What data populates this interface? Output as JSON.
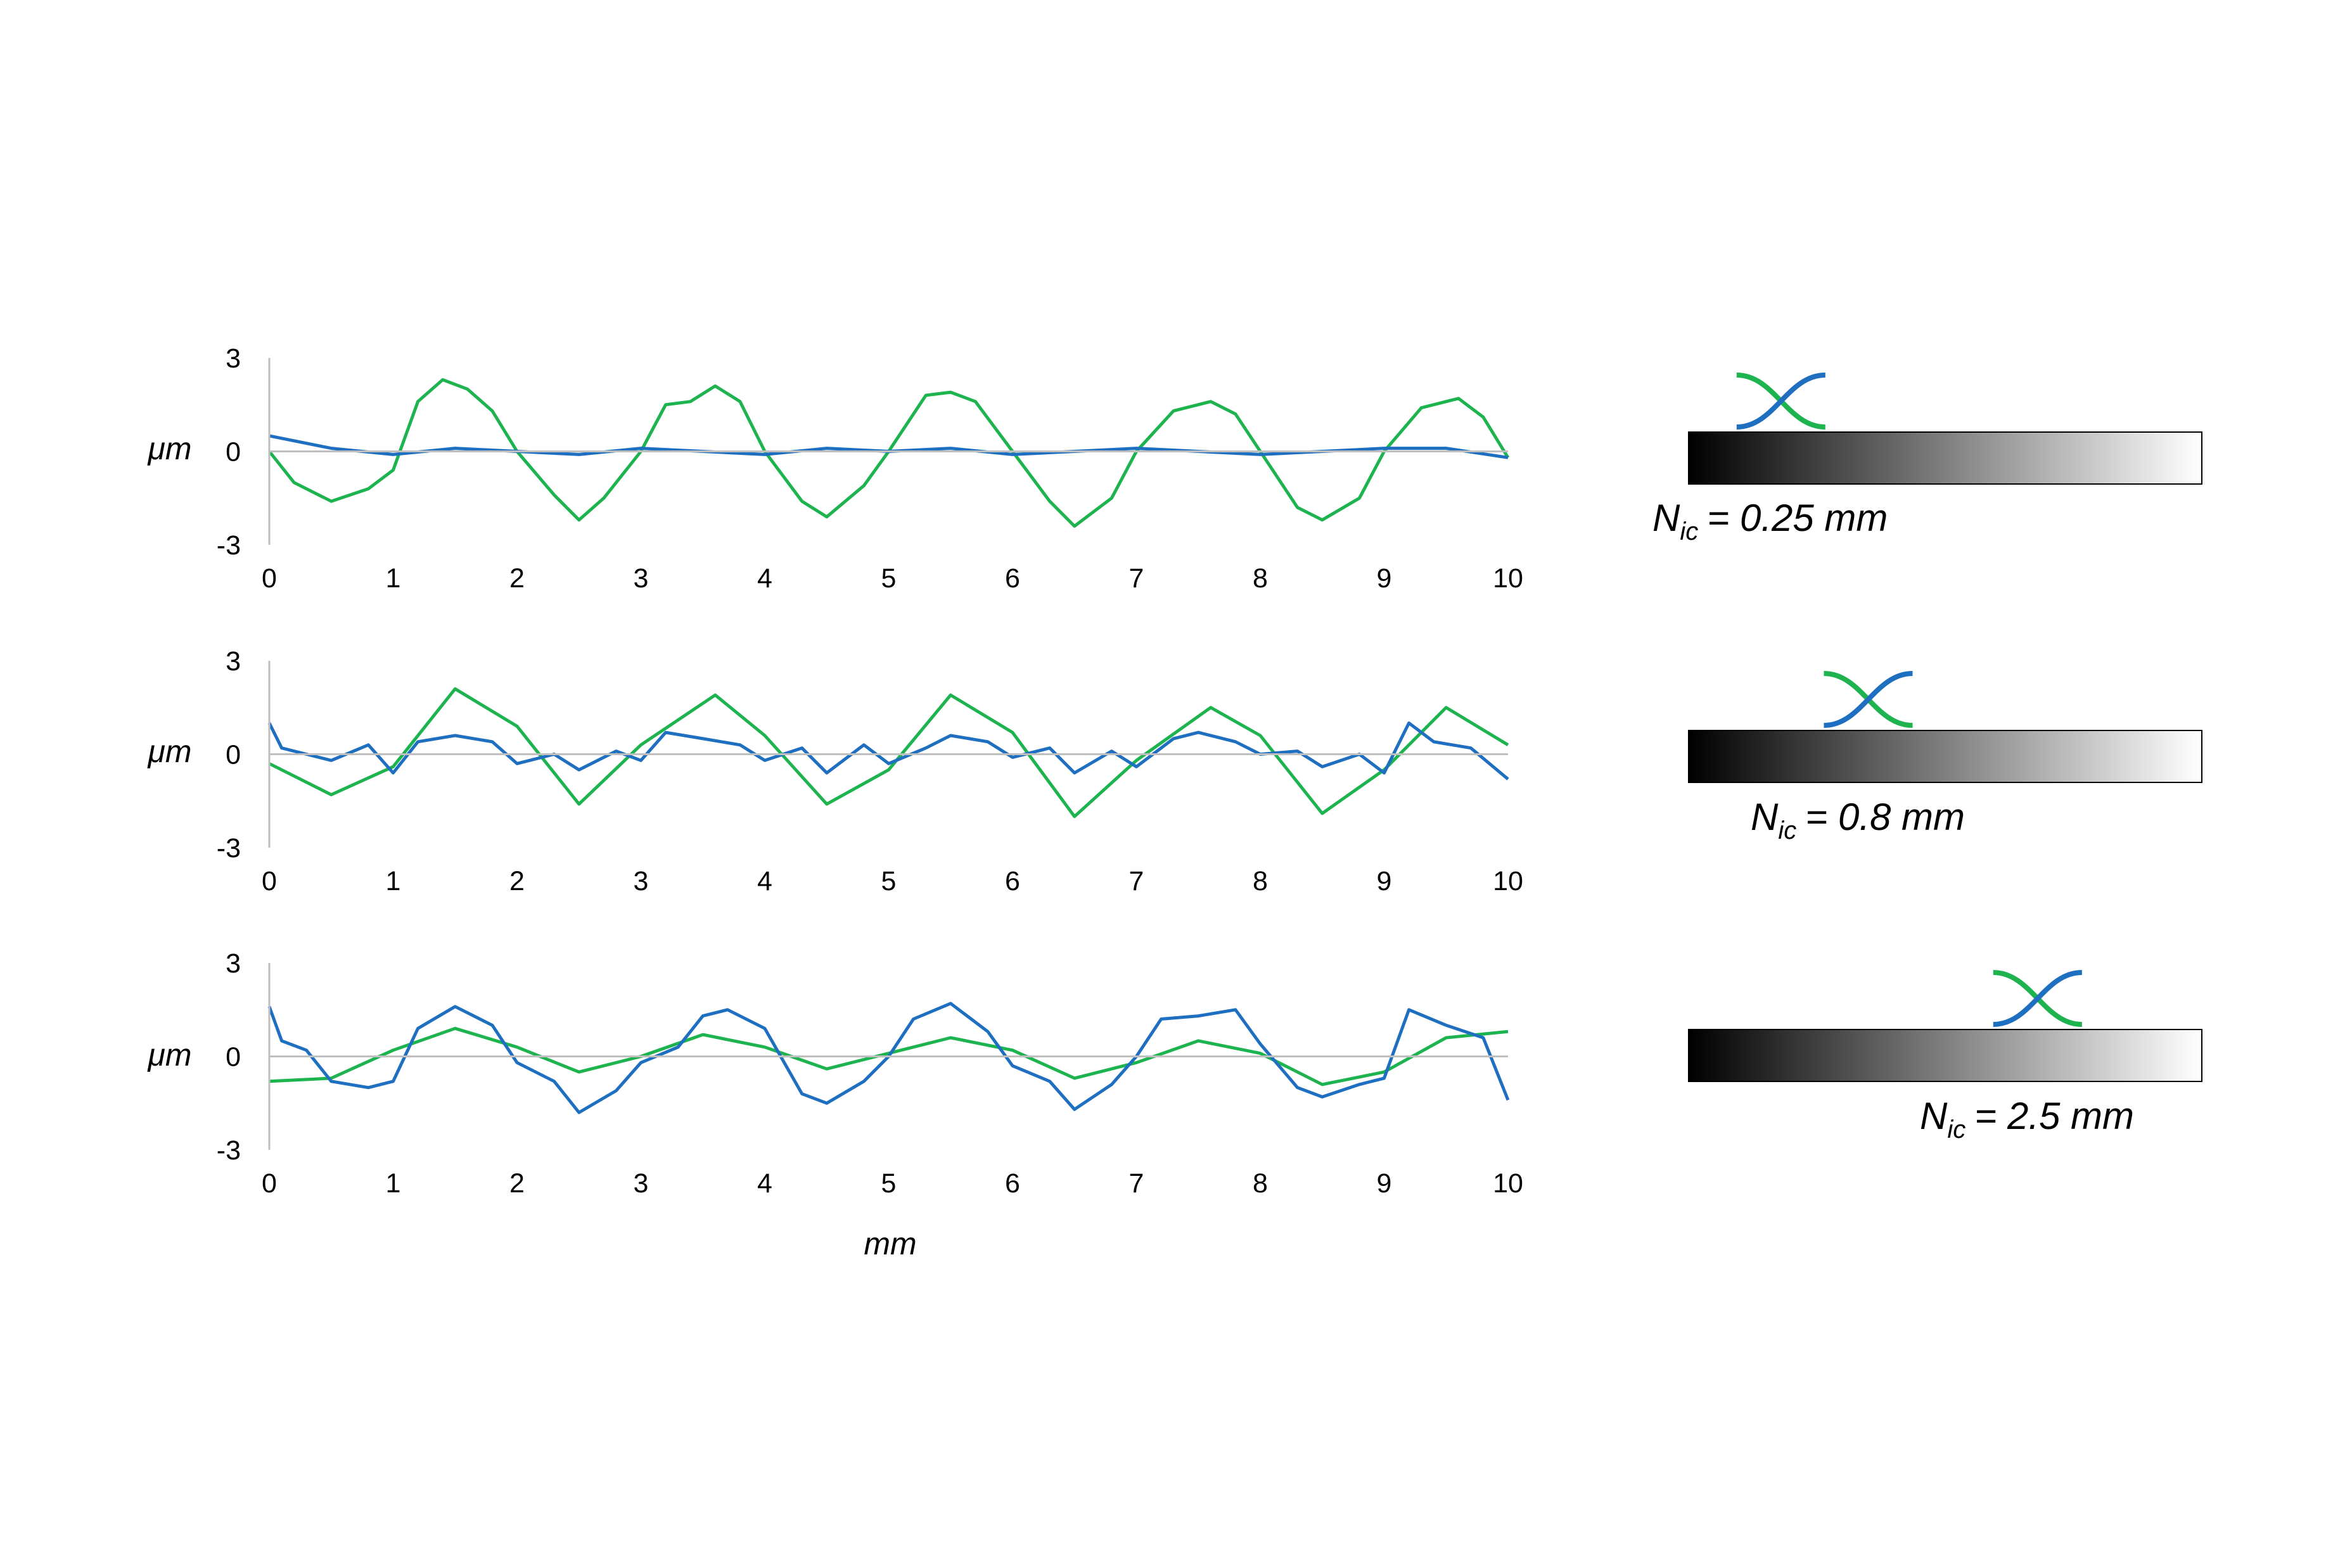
{
  "chart_data": [
    {
      "type": "line",
      "xlabel": "",
      "ylabel": "μm",
      "xlim": [
        0,
        10
      ],
      "ylim": [
        -3,
        3
      ],
      "xticks": [
        "0",
        "1",
        "2",
        "3",
        "4",
        "5",
        "6",
        "7",
        "8",
        "9",
        "10"
      ],
      "yticks": [
        "3",
        "0",
        "-3"
      ],
      "grid": false,
      "series": [
        {
          "color": "#1f6fc1",
          "x": [
            0,
            0.5,
            1,
            1.5,
            2,
            2.5,
            3,
            3.5,
            4,
            4.5,
            5,
            5.5,
            6,
            6.5,
            7,
            7.5,
            8,
            8.5,
            9,
            9.5,
            10
          ],
          "values": [
            0.5,
            0.1,
            -0.1,
            0.1,
            0.0,
            -0.1,
            0.1,
            0.0,
            -0.1,
            0.1,
            0.0,
            0.1,
            -0.1,
            0.0,
            0.1,
            0.0,
            -0.1,
            0.0,
            0.1,
            0.1,
            -0.2
          ]
        },
        {
          "color": "#1db34f",
          "x": [
            0,
            0.2,
            0.5,
            0.8,
            1.0,
            1.2,
            1.4,
            1.6,
            1.8,
            2.0,
            2.3,
            2.5,
            2.7,
            3.0,
            3.2,
            3.4,
            3.6,
            3.8,
            4.0,
            4.3,
            4.5,
            4.8,
            5.0,
            5.3,
            5.5,
            5.7,
            6.0,
            6.3,
            6.5,
            6.8,
            7.0,
            7.3,
            7.6,
            7.8,
            8.0,
            8.3,
            8.5,
            8.8,
            9.0,
            9.3,
            9.6,
            9.8,
            10
          ],
          "values": [
            0.0,
            -1.0,
            -1.6,
            -1.2,
            -0.6,
            1.6,
            2.3,
            2.0,
            1.3,
            0.0,
            -1.4,
            -2.2,
            -1.5,
            0.0,
            1.5,
            1.6,
            2.1,
            1.6,
            0.0,
            -1.6,
            -2.1,
            -1.1,
            0.0,
            1.8,
            1.9,
            1.6,
            0.0,
            -1.6,
            -2.4,
            -1.5,
            0.0,
            1.3,
            1.6,
            1.2,
            0.0,
            -1.8,
            -2.2,
            -1.5,
            0.0,
            1.4,
            1.7,
            1.1,
            -0.2
          ]
        }
      ]
    },
    {
      "type": "line",
      "xlabel": "",
      "ylabel": "μm",
      "xlim": [
        0,
        10
      ],
      "ylim": [
        -3,
        3
      ],
      "xticks": [
        "0",
        "1",
        "2",
        "3",
        "4",
        "5",
        "6",
        "7",
        "8",
        "9",
        "10"
      ],
      "yticks": [
        "3",
        "0",
        "-3"
      ],
      "grid": false,
      "series": [
        {
          "color": "#1f6fc1",
          "x": [
            0,
            0.1,
            0.3,
            0.5,
            0.8,
            1.0,
            1.2,
            1.5,
            1.8,
            2.0,
            2.3,
            2.5,
            2.8,
            3.0,
            3.2,
            3.5,
            3.8,
            4.0,
            4.3,
            4.5,
            4.8,
            5.0,
            5.3,
            5.5,
            5.8,
            6.0,
            6.3,
            6.5,
            6.8,
            7.0,
            7.3,
            7.5,
            7.8,
            8.0,
            8.3,
            8.5,
            8.8,
            9.0,
            9.2,
            9.4,
            9.7,
            10
          ],
          "values": [
            1.0,
            0.2,
            0.0,
            -0.2,
            0.3,
            -0.6,
            0.4,
            0.6,
            0.4,
            -0.3,
            0.0,
            -0.5,
            0.1,
            -0.2,
            0.7,
            0.5,
            0.3,
            -0.2,
            0.2,
            -0.6,
            0.3,
            -0.3,
            0.2,
            0.6,
            0.4,
            -0.1,
            0.2,
            -0.6,
            0.1,
            -0.4,
            0.5,
            0.7,
            0.4,
            0.0,
            0.1,
            -0.4,
            0.0,
            -0.6,
            1.0,
            0.4,
            0.2,
            -0.8
          ]
        },
        {
          "color": "#1db34f",
          "x": [
            0,
            0.5,
            1.0,
            1.5,
            2.0,
            2.5,
            3.0,
            3.6,
            4.0,
            4.5,
            5.0,
            5.5,
            6.0,
            6.5,
            7.0,
            7.6,
            8.0,
            8.5,
            9.0,
            9.5,
            10
          ],
          "values": [
            -0.3,
            -1.3,
            -0.4,
            2.1,
            0.9,
            -1.6,
            0.3,
            1.9,
            0.6,
            -1.6,
            -0.5,
            1.9,
            0.7,
            -2.0,
            -0.2,
            1.5,
            0.6,
            -1.9,
            -0.5,
            1.5,
            0.3
          ]
        }
      ]
    },
    {
      "type": "line",
      "xlabel": "mm",
      "ylabel": "μm",
      "xlim": [
        0,
        10
      ],
      "ylim": [
        -3,
        3
      ],
      "xticks": [
        "0",
        "1",
        "2",
        "3",
        "4",
        "5",
        "6",
        "7",
        "8",
        "9",
        "10"
      ],
      "yticks": [
        "3",
        "0",
        "-3"
      ],
      "grid": false,
      "series": [
        {
          "color": "#1f6fc1",
          "x": [
            0,
            0.1,
            0.3,
            0.5,
            0.8,
            1.0,
            1.2,
            1.5,
            1.8,
            2.0,
            2.3,
            2.5,
            2.8,
            3.0,
            3.3,
            3.5,
            3.7,
            4.0,
            4.3,
            4.5,
            4.8,
            5.0,
            5.2,
            5.5,
            5.8,
            6.0,
            6.3,
            6.5,
            6.8,
            7.0,
            7.2,
            7.5,
            7.8,
            8.0,
            8.3,
            8.5,
            8.8,
            9.0,
            9.2,
            9.5,
            9.8,
            10
          ],
          "values": [
            1.6,
            0.5,
            0.2,
            -0.8,
            -1.0,
            -0.8,
            0.9,
            1.6,
            1.0,
            -0.2,
            -0.8,
            -1.8,
            -1.1,
            -0.2,
            0.3,
            1.3,
            1.5,
            0.9,
            -1.2,
            -1.5,
            -0.8,
            0.0,
            1.2,
            1.7,
            0.8,
            -0.3,
            -0.8,
            -1.7,
            -0.9,
            0.0,
            1.2,
            1.3,
            1.5,
            0.4,
            -1.0,
            -1.3,
            -0.9,
            -0.7,
            1.5,
            1.0,
            0.6,
            -1.4
          ]
        },
        {
          "color": "#1db34f",
          "x": [
            0,
            0.5,
            1.0,
            1.5,
            2.0,
            2.5,
            3.0,
            3.5,
            4.0,
            4.5,
            5.0,
            5.5,
            6.0,
            6.5,
            7.0,
            7.5,
            8.0,
            8.5,
            9.0,
            9.5,
            10
          ],
          "values": [
            -0.8,
            -0.7,
            0.2,
            0.9,
            0.3,
            -0.5,
            0.0,
            0.7,
            0.3,
            -0.4,
            0.1,
            0.6,
            0.2,
            -0.7,
            -0.2,
            0.5,
            0.1,
            -0.9,
            -0.5,
            0.6,
            0.8
          ]
        }
      ]
    }
  ],
  "filters": [
    {
      "label": "N",
      "subscript": "ic",
      "value": "= 0.25 mm",
      "marker_position": 0.18
    },
    {
      "label": "N",
      "subscript": "ic",
      "value": "= 0.8 mm",
      "marker_position": 0.35
    },
    {
      "label": "N",
      "subscript": "ic",
      "value": "= 2.5 mm",
      "marker_position": 0.68
    }
  ]
}
